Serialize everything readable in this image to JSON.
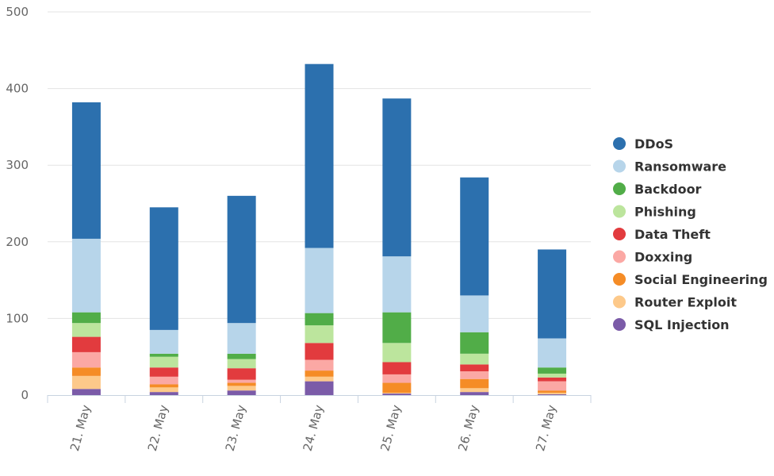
{
  "chart_data": {
    "type": "bar",
    "stacked": true,
    "categories": [
      "21. May",
      "22. May",
      "23. May",
      "24. May",
      "25. May",
      "26. May",
      "27. May"
    ],
    "ylim": [
      0,
      500
    ],
    "y_ticks": [
      "0",
      "100",
      "200",
      "300",
      "400",
      "500"
    ],
    "grid": true,
    "legend_position": "right",
    "series": [
      {
        "name": "SQL Injection",
        "color": "#7b5ba8",
        "values": [
          8,
          4,
          6,
          18,
          2,
          4,
          1
        ]
      },
      {
        "name": "Router Exploit",
        "color": "#fdc98a",
        "values": [
          17,
          6,
          6,
          6,
          1,
          5,
          2
        ]
      },
      {
        "name": "Social Engineering",
        "color": "#f58c26",
        "values": [
          11,
          4,
          4,
          8,
          13,
          12,
          3
        ]
      },
      {
        "name": "Doxxing",
        "color": "#fba8a4",
        "values": [
          20,
          10,
          4,
          14,
          11,
          10,
          12
        ]
      },
      {
        "name": "Data Theft",
        "color": "#e23b3e",
        "values": [
          20,
          12,
          15,
          22,
          16,
          9,
          5
        ]
      },
      {
        "name": "Phishing",
        "color": "#bce59d",
        "values": [
          18,
          14,
          12,
          23,
          25,
          14,
          5
        ]
      },
      {
        "name": "Backdoor",
        "color": "#51ad48",
        "values": [
          14,
          4,
          7,
          16,
          40,
          28,
          8
        ]
      },
      {
        "name": "Ransomware",
        "color": "#b7d5ea",
        "values": [
          96,
          31,
          40,
          85,
          73,
          48,
          38
        ]
      },
      {
        "name": "DDoS",
        "color": "#2c70ae",
        "values": [
          178,
          160,
          166,
          240,
          206,
          154,
          116
        ]
      }
    ],
    "legend_order": [
      "DDoS",
      "Ransomware",
      "Backdoor",
      "Phishing",
      "Data Theft",
      "Doxxing",
      "Social Engineering",
      "Router Exploit",
      "SQL Injection"
    ]
  }
}
